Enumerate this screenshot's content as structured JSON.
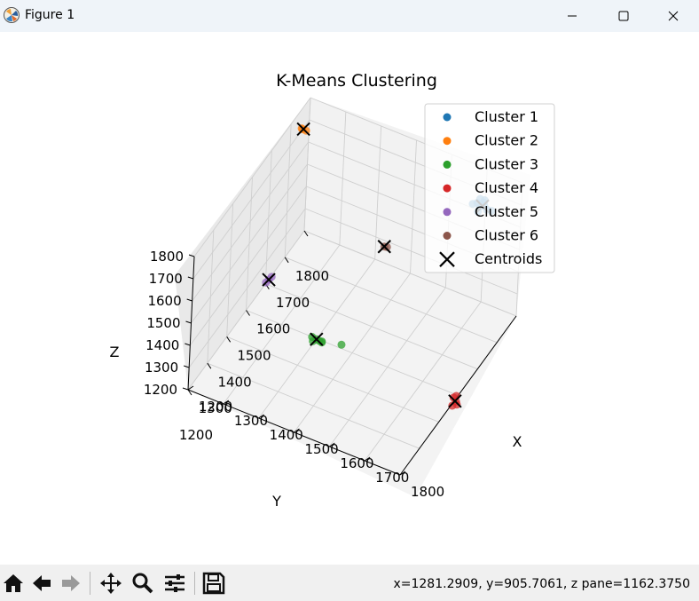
{
  "window": {
    "title": "Figure 1",
    "icon": "matplotlib-icon",
    "controls": [
      "minimize-icon",
      "maximize-icon",
      "close-icon"
    ]
  },
  "toolbar": {
    "buttons": [
      "home-icon",
      "back-icon",
      "forward-icon",
      "pan-icon",
      "zoom-icon",
      "configure-subplots-icon",
      "save-icon"
    ],
    "coordinates": "x=1281.2909, y=905.7061, z pane=1162.3750"
  },
  "chart_data": {
    "type": "scatter",
    "projection": "3d",
    "title": "K-Means Clustering",
    "xlabel": "X",
    "ylabel": "Y",
    "zlabel": "Z",
    "xlim": [
      1200,
      1800
    ],
    "ylim": [
      1200,
      1800
    ],
    "zlim": [
      1200,
      1800
    ],
    "xticks": [
      "1200",
      "1300",
      "1400",
      "1500",
      "1600",
      "1700",
      "1800"
    ],
    "yticks": [
      "1200",
      "1300",
      "1400",
      "1500",
      "1600",
      "1700",
      "1800"
    ],
    "zticks": [
      "1200",
      "1300",
      "1400",
      "1500",
      "1600",
      "1700",
      "1800"
    ],
    "grid": true,
    "legend_position": "top-right",
    "colors": {
      "Cluster 1": "#1f77b4",
      "Cluster 2": "#ff7f0e",
      "Cluster 3": "#2ca02c",
      "Cluster 4": "#d62728",
      "Cluster 5": "#9467bd",
      "Cluster 6": "#8c564b",
      "Centroids": "#000000"
    },
    "series": [
      {
        "name": "Cluster 1",
        "points": [
          [
            1730,
            1710,
            1790
          ],
          [
            1720,
            1715,
            1760
          ],
          [
            1745,
            1705,
            1800
          ],
          [
            1755,
            1700,
            1770
          ],
          [
            1735,
            1690,
            1760
          ],
          [
            1725,
            1720,
            1740
          ],
          [
            1740,
            1710,
            1780
          ],
          [
            1760,
            1715,
            1750
          ],
          [
            1715,
            1700,
            1770
          ],
          [
            1750,
            1695,
            1790
          ]
        ]
      },
      {
        "name": "Cluster 2",
        "points": [
          [
            1230,
            1700,
            1800
          ],
          [
            1240,
            1705,
            1790
          ],
          [
            1235,
            1695,
            1805
          ]
        ]
      },
      {
        "name": "Cluster 3",
        "points": [
          [
            1500,
            1300,
            1500
          ],
          [
            1510,
            1310,
            1480
          ],
          [
            1490,
            1295,
            1510
          ],
          [
            1505,
            1305,
            1490
          ],
          [
            1515,
            1300,
            1500
          ],
          [
            1560,
            1320,
            1490
          ],
          [
            1495,
            1290,
            1500
          ]
        ]
      },
      {
        "name": "Cluster 4",
        "points": [
          [
            1805,
            1480,
            1200
          ],
          [
            1800,
            1490,
            1210
          ],
          [
            1810,
            1475,
            1195
          ],
          [
            1795,
            1485,
            1205
          ],
          [
            1800,
            1470,
            1190
          ]
        ]
      },
      {
        "name": "Cluster 5",
        "points": [
          [
            1400,
            1220,
            1800
          ],
          [
            1405,
            1225,
            1810
          ],
          [
            1395,
            1215,
            1790
          ]
        ]
      },
      {
        "name": "Cluster 6",
        "points": [
          [
            1500,
            1650,
            1500
          ],
          [
            1505,
            1655,
            1495
          ]
        ]
      },
      {
        "name": "Centroids",
        "marker": "x",
        "points": [
          [
            1740,
            1705,
            1770
          ],
          [
            1235,
            1700,
            1800
          ],
          [
            1500,
            1300,
            1500
          ],
          [
            1802,
            1480,
            1200
          ],
          [
            1400,
            1220,
            1800
          ],
          [
            1500,
            1650,
            1500
          ]
        ]
      }
    ]
  }
}
